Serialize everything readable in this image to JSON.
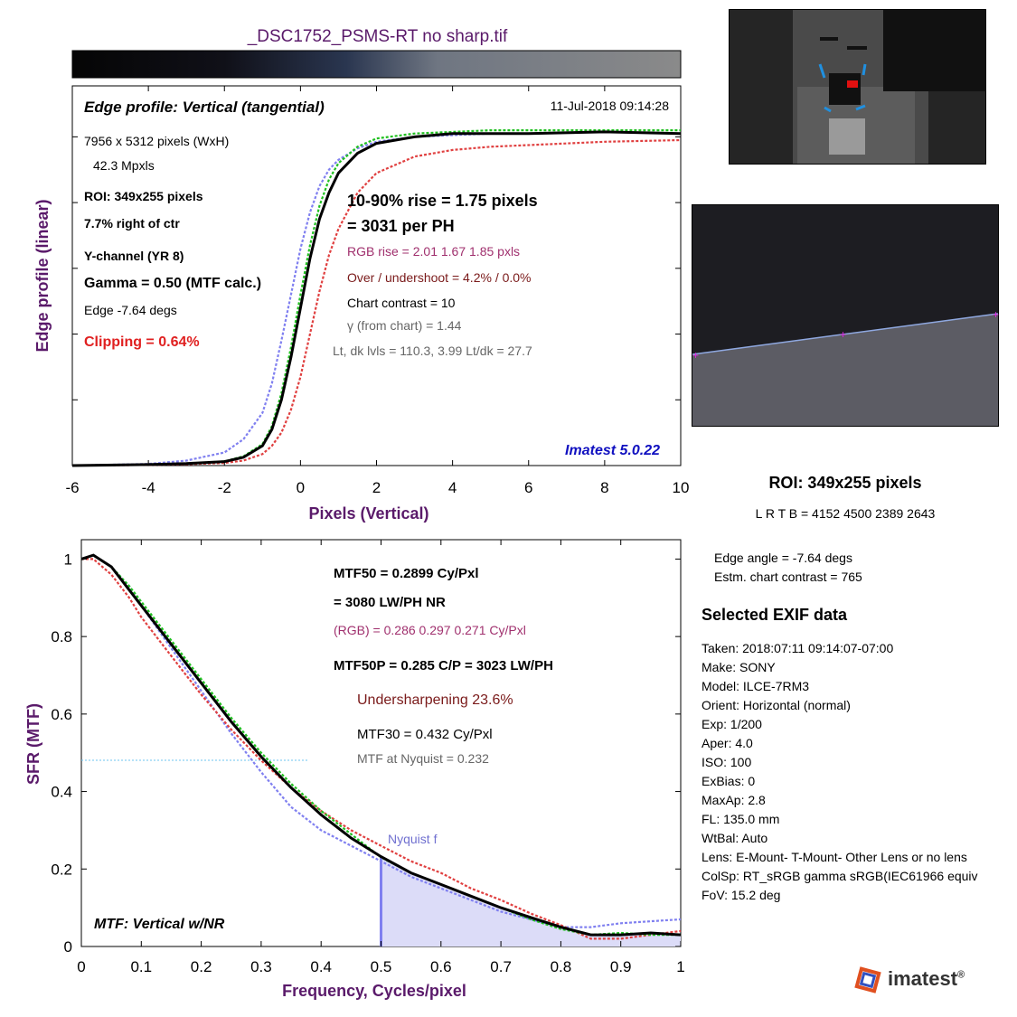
{
  "title": "_DSC1752_PSMS-RT no sharp.tif",
  "colors": {
    "title": "#5a1a6a",
    "red_text": "#e02020",
    "magenta_text": "#a0306e",
    "maroon_text": "#7a1a1a",
    "blue_text": "#1010c0",
    "gray_text": "#555555",
    "nyquist": "#7070d0"
  },
  "edge_plot": {
    "heading": "Edge profile: Vertical (tangential)",
    "date": "11-Jul-2018 09:14:28",
    "image_size": "7956 x 5312 pixels (WxH)",
    "mpxls": "42.3 Mpxls",
    "roi": "ROI:  349x255 pixels",
    "offset": "7.7% right of ctr",
    "channel": "Y-channel  (YR 8)",
    "gamma": "Gamma = 0.50 (MTF calc.)",
    "edge": "Edge  -7.64 degs",
    "clipping": "Clipping =   0.64%",
    "rise": "10-90% rise = 1.75 pixels",
    "per_ph": "=   3031 per PH",
    "rgb_rise": "RGB rise =   2.01    1.67    1.85 pxls",
    "overshoot": "Over / undershoot =  4.2% /  0.0%",
    "chart_contrast": "Chart contrast = 10",
    "gamma_chart": "γ (from chart) =  1.44",
    "levels": "Lt, dk lvls =  110.3,   3.99   Lt/dk =   27.7",
    "version": "Imatest 5.0.22"
  },
  "mtf_plot": {
    "mtf50": "MTF50 = 0.2899 Cy/Pxl",
    "lwph": "= 3080 LW/PH  NR",
    "rgb": "(RGB) = 0.286  0.297  0.271 Cy/Pxl",
    "mtf50p": "MTF50P = 0.285 C/P = 3023 LW/PH",
    "undersharpening": "Undersharpening 23.6%",
    "mtf30": "MTF30 = 0.432 Cy/Pxl",
    "nyquist_mtf": "MTF at Nyquist = 0.232",
    "nyquist_label": "Nyquist f",
    "corner_label": "MTF: Vertical w/NR"
  },
  "roi_panel": {
    "title": "ROI:  349x255 pixels",
    "coords": "L R  T B = 4152 4500  2389 2643",
    "edge_angle": "Edge angle = -7.64 degs",
    "est_contrast": "Estm. chart contrast = 765"
  },
  "exif": {
    "title": "Selected EXIF data",
    "lines": [
      "Taken: 2018:07:11 09:14:07-07:00",
      "Make:  SONY",
      "Model:  ILCE-7RM3",
      "Orient: Horizontal (normal)",
      "Exp:     1/200",
      "Aper:    4.0",
      "ISO:     100",
      "ExBias: 0",
      "MaxAp: 2.8",
      "FL:      135.0 mm",
      "WtBal: Auto",
      "Lens:    E-Mount- T-Mount- Other Lens or no lens",
      "ColSp: RT_sRGB gamma sRGB(IEC61966 equiv",
      "FoV:    15.2 deg"
    ]
  },
  "logo_text": "imatest",
  "chart_data": [
    {
      "type": "line",
      "title": "Edge profile: Vertical (tangential)",
      "xlabel": "Pixels (Vertical)",
      "ylabel": "Edge profile (linear)",
      "xlim": [
        -6,
        10
      ],
      "xticks": [
        -6,
        -4,
        -2,
        0,
        2,
        4,
        6,
        8,
        10
      ],
      "ylim": [
        0,
        1.1
      ],
      "grid": false,
      "series": [
        {
          "color": "#000000",
          "x": [
            -6,
            -4,
            -3,
            -2,
            -1.5,
            -1,
            -0.75,
            -0.5,
            -0.25,
            0,
            0.25,
            0.5,
            0.75,
            1,
            1.5,
            2,
            3,
            4,
            5,
            6,
            8,
            10
          ],
          "y": [
            0.0,
            0.003,
            0.006,
            0.012,
            0.025,
            0.06,
            0.11,
            0.2,
            0.33,
            0.48,
            0.63,
            0.75,
            0.83,
            0.89,
            0.95,
            0.98,
            1.0,
            1.01,
            1.01,
            1.01,
            1.015,
            1.01
          ]
        },
        {
          "color": "#e04040",
          "x": [
            -6,
            -4,
            -3,
            -2,
            -1.5,
            -1,
            -0.75,
            -0.5,
            -0.25,
            0,
            0.25,
            0.5,
            0.75,
            1,
            1.5,
            2,
            3,
            4,
            5,
            6,
            8,
            10
          ],
          "y": [
            0.0,
            0.002,
            0.004,
            0.008,
            0.015,
            0.035,
            0.06,
            0.1,
            0.17,
            0.27,
            0.4,
            0.53,
            0.64,
            0.72,
            0.83,
            0.89,
            0.94,
            0.96,
            0.97,
            0.975,
            0.985,
            0.99
          ]
        },
        {
          "color": "#20c020",
          "x": [
            -6,
            -4,
            -3,
            -2,
            -1.5,
            -1,
            -0.75,
            -0.5,
            -0.25,
            0,
            0.25,
            0.5,
            0.75,
            1,
            1.5,
            2,
            3,
            4,
            5,
            6,
            8,
            10
          ],
          "y": [
            0.0,
            0.003,
            0.006,
            0.013,
            0.028,
            0.065,
            0.12,
            0.22,
            0.36,
            0.52,
            0.67,
            0.79,
            0.87,
            0.92,
            0.97,
            0.995,
            1.01,
            1.015,
            1.02,
            1.02,
            1.02,
            1.02
          ]
        },
        {
          "color": "#8080f0",
          "x": [
            -6,
            -4,
            -3,
            -2,
            -1.5,
            -1,
            -0.75,
            -0.5,
            -0.25,
            0,
            0.25,
            0.5,
            0.75,
            1,
            1.5,
            2,
            3,
            4,
            5,
            6,
            8,
            10
          ],
          "y": [
            0.0,
            0.005,
            0.015,
            0.04,
            0.08,
            0.16,
            0.25,
            0.38,
            0.52,
            0.66,
            0.77,
            0.85,
            0.9,
            0.93,
            0.965,
            0.985,
            1.0,
            1.005,
            1.01,
            1.01,
            1.015,
            1.01
          ]
        }
      ]
    },
    {
      "type": "line",
      "title": "MTF: Vertical w/NR",
      "xlabel": "Frequency, Cycles/pixel",
      "ylabel": "SFR (MTF)",
      "xlim": [
        0,
        1
      ],
      "xticks": [
        0,
        0.1,
        0.2,
        0.3,
        0.4,
        0.5,
        0.6,
        0.7,
        0.8,
        0.9,
        1
      ],
      "ylim": [
        0,
        1.05
      ],
      "yticks": [
        0,
        0.2,
        0.4,
        0.6,
        0.8,
        1
      ],
      "grid": false,
      "nyquist": 0.5,
      "series": [
        {
          "color": "#000000",
          "x": [
            0,
            0.02,
            0.05,
            0.08,
            0.1,
            0.15,
            0.2,
            0.25,
            0.3,
            0.35,
            0.4,
            0.45,
            0.5,
            0.55,
            0.6,
            0.65,
            0.7,
            0.75,
            0.8,
            0.85,
            0.9,
            0.95,
            1
          ],
          "y": [
            1.0,
            1.01,
            0.98,
            0.92,
            0.88,
            0.78,
            0.68,
            0.58,
            0.49,
            0.41,
            0.34,
            0.28,
            0.232,
            0.19,
            0.16,
            0.13,
            0.1,
            0.075,
            0.05,
            0.03,
            0.03,
            0.035,
            0.03
          ]
        },
        {
          "color": "#e04040",
          "x": [
            0,
            0.02,
            0.05,
            0.08,
            0.1,
            0.15,
            0.2,
            0.25,
            0.3,
            0.35,
            0.4,
            0.45,
            0.5,
            0.55,
            0.6,
            0.65,
            0.7,
            0.75,
            0.8,
            0.85,
            0.9,
            0.95,
            1
          ],
          "y": [
            1.0,
            1.0,
            0.96,
            0.9,
            0.85,
            0.75,
            0.65,
            0.56,
            0.48,
            0.41,
            0.35,
            0.3,
            0.26,
            0.22,
            0.19,
            0.15,
            0.12,
            0.085,
            0.055,
            0.02,
            0.02,
            0.03,
            0.04
          ]
        },
        {
          "color": "#20c020",
          "x": [
            0,
            0.02,
            0.05,
            0.08,
            0.1,
            0.15,
            0.2,
            0.25,
            0.3,
            0.35,
            0.4,
            0.45,
            0.5,
            0.55,
            0.6,
            0.65,
            0.7,
            0.75,
            0.8,
            0.85,
            0.9,
            0.95,
            1
          ],
          "y": [
            1.0,
            1.01,
            0.98,
            0.93,
            0.89,
            0.79,
            0.69,
            0.59,
            0.5,
            0.42,
            0.35,
            0.29,
            0.23,
            0.19,
            0.16,
            0.13,
            0.1,
            0.07,
            0.045,
            0.03,
            0.035,
            0.03,
            0.03
          ]
        },
        {
          "color": "#8080f0",
          "x": [
            0,
            0.02,
            0.05,
            0.08,
            0.1,
            0.15,
            0.2,
            0.25,
            0.3,
            0.35,
            0.4,
            0.45,
            0.5,
            0.55,
            0.6,
            0.65,
            0.7,
            0.75,
            0.8,
            0.85,
            0.9,
            0.95,
            1
          ],
          "y": [
            1.0,
            1.01,
            0.98,
            0.93,
            0.88,
            0.77,
            0.66,
            0.55,
            0.45,
            0.36,
            0.3,
            0.26,
            0.22,
            0.18,
            0.15,
            0.12,
            0.09,
            0.07,
            0.05,
            0.05,
            0.06,
            0.065,
            0.07
          ]
        }
      ]
    }
  ]
}
